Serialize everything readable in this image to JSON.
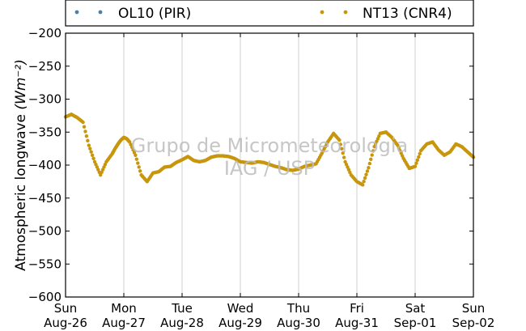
{
  "chart_data": {
    "type": "scatter",
    "ylabel_text": "Atmospheric longwave",
    "ylabel_units": "(Wm⁻²)",
    "ylim": [
      -600,
      -200
    ],
    "yticks": [
      -600,
      -550,
      -500,
      -450,
      -400,
      -350,
      -300,
      -250,
      -200
    ],
    "ytick_labels": [
      "−600",
      "−550",
      "−500",
      "−450",
      "−400",
      "−350",
      "−300",
      "−250",
      "−200"
    ],
    "xlim": [
      "2012-08-26",
      "2012-09-02"
    ],
    "xticks": [
      {
        "day": "Sun",
        "date": "Aug-26"
      },
      {
        "day": "Mon",
        "date": "Aug-27"
      },
      {
        "day": "Tue",
        "date": "Aug-28"
      },
      {
        "day": "Wed",
        "date": "Aug-29"
      },
      {
        "day": "Thu",
        "date": "Aug-30"
      },
      {
        "day": "Fri",
        "date": "Aug-31"
      },
      {
        "day": "Sat",
        "date": "Sep-01"
      },
      {
        "day": "Sun",
        "date": "Sep-02"
      }
    ],
    "grid": "vertical",
    "legend_position": "top",
    "watermark_line1": "Grupo de Micrometeorologia",
    "watermark_line2": "IAG / USP",
    "series": [
      {
        "name": "OL10 (PIR)",
        "color": "#4a7fa8",
        "x_days": [],
        "y": []
      },
      {
        "name": "NT13 (CNR4)",
        "color": "#c8960c",
        "x_days": [
          0.0,
          0.1,
          0.2,
          0.3,
          0.4,
          0.5,
          0.6,
          0.7,
          0.8,
          0.85,
          0.9,
          0.95,
          1.0,
          1.05,
          1.1,
          1.2,
          1.3,
          1.4,
          1.5,
          1.6,
          1.7,
          1.8,
          1.9,
          2.0,
          2.1,
          2.2,
          2.3,
          2.4,
          2.5,
          2.6,
          2.7,
          2.8,
          2.9,
          3.0,
          3.1,
          3.2,
          3.3,
          3.4,
          3.5,
          3.6,
          3.7,
          3.8,
          3.9,
          4.0,
          4.1,
          4.2,
          4.3,
          4.4,
          4.5,
          4.6,
          4.7,
          4.8,
          4.9,
          5.0,
          5.1,
          5.2,
          5.3,
          5.4,
          5.5,
          5.6,
          5.7,
          5.8,
          5.9,
          6.0,
          6.1,
          6.2,
          6.3,
          6.4,
          6.5,
          6.6,
          6.7,
          6.8,
          6.9,
          7.0
        ],
        "y": [
          -327,
          -323,
          -328,
          -335,
          -370,
          -395,
          -415,
          -395,
          -383,
          -375,
          -368,
          -362,
          -358,
          -360,
          -365,
          -385,
          -415,
          -425,
          -412,
          -410,
          -403,
          -402,
          -396,
          -392,
          -387,
          -393,
          -395,
          -393,
          -388,
          -386,
          -386,
          -387,
          -390,
          -395,
          -396,
          -397,
          -395,
          -396,
          -399,
          -402,
          -404,
          -407,
          -408,
          -406,
          -402,
          -400,
          -398,
          -382,
          -365,
          -352,
          -362,
          -395,
          -415,
          -425,
          -430,
          -404,
          -372,
          -352,
          -350,
          -358,
          -370,
          -390,
          -405,
          -402,
          -378,
          -368,
          -365,
          -377,
          -385,
          -380,
          -368,
          -372,
          -380,
          -388
        ]
      }
    ]
  }
}
